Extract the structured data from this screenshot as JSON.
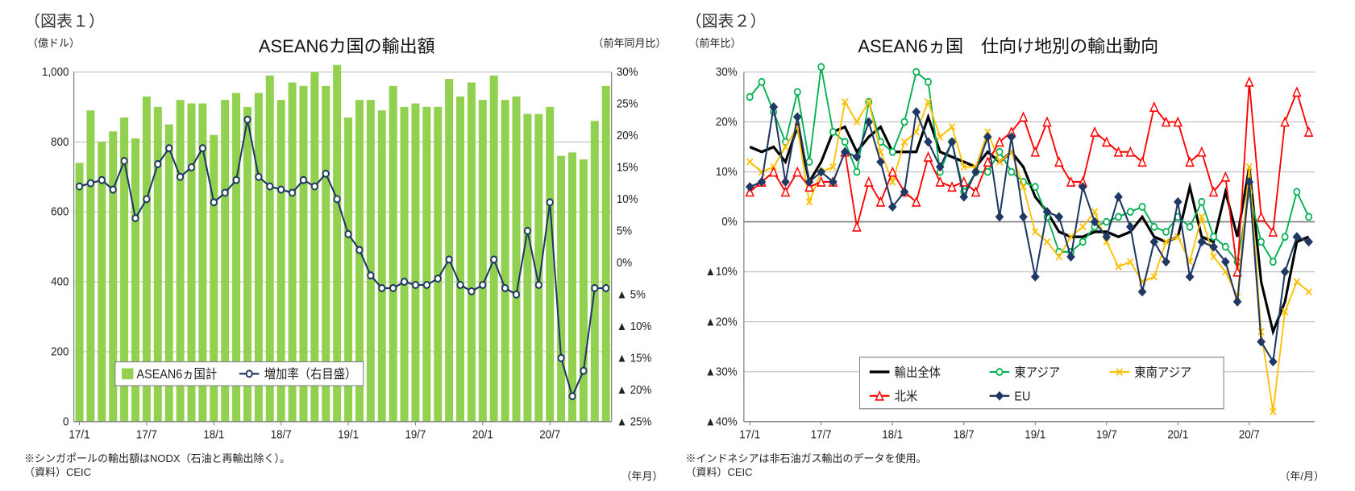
{
  "chart1": {
    "fig_label": "（図表１）",
    "title": "ASEAN6カ国の輸出額",
    "y_left_label": "（億ドル）",
    "y_right_label": "（前年同月比）",
    "x_unit": "（年月）",
    "footnote1": "※シンガポールの輸出額はNODX（石油と再輸出除く）。",
    "footnote2": "（資料）CEIC",
    "type": "bar_and_line",
    "background_color": "#ffffff",
    "grid_color": "#bfbfbf",
    "axis_color": "#7f7f7f",
    "bar_color": "#92d050",
    "line_color": "#1f3864",
    "marker_fill": "#ffffff",
    "marker_stroke": "#1f3864",
    "marker_radius": 3.5,
    "line_width": 2,
    "y_left": {
      "min": 0,
      "max": 1000,
      "step": 200
    },
    "y_right": {
      "min": -25,
      "max": 30,
      "step": 5,
      "labels": [
        "30%",
        "25%",
        "20%",
        "15%",
        "10%",
        "5%",
        "0%",
        "▲ 5%",
        "▲ 10%",
        "▲ 15%",
        "▲ 20%",
        "▲ 25%"
      ]
    },
    "x_labels": [
      "17/1",
      "17/7",
      "18/1",
      "18/7",
      "19/1",
      "19/7",
      "20/1",
      "20/7"
    ],
    "bar_series_name": "ASEAN6ヵ国計",
    "line_series_name": "増加率（右目盛）",
    "bar_values": [
      740,
      890,
      800,
      830,
      870,
      810,
      930,
      900,
      850,
      920,
      910,
      910,
      820,
      920,
      940,
      900,
      940,
      990,
      920,
      970,
      960,
      1000,
      960,
      1020,
      870,
      920,
      920,
      890,
      960,
      900,
      910,
      900,
      900,
      980,
      930,
      970,
      920,
      990,
      920,
      930,
      880,
      880,
      900,
      760,
      770,
      750,
      860,
      960
    ],
    "line_values": [
      12.0,
      12.5,
      13.0,
      11.5,
      16.0,
      7.0,
      10.0,
      15.5,
      18.0,
      13.5,
      15.0,
      18.0,
      9.5,
      11.0,
      13.0,
      22.5,
      13.5,
      12.0,
      11.5,
      11.0,
      13.0,
      12.0,
      14.0,
      10.0,
      4.5,
      2.0,
      -2.0,
      -4.0,
      -4.0,
      -3.0,
      -3.5,
      -3.5,
      -2.5,
      0.5,
      -3.5,
      -4.5,
      -3.5,
      0.5,
      -4.0,
      -5.0,
      5.0,
      -3.5,
      9.5,
      -15.0,
      -21.0,
      -17.0,
      -4.0,
      -4.0
    ]
  },
  "chart2": {
    "fig_label": "（図表２）",
    "title": "ASEAN6ヵ国　仕向け地別の輸出動向",
    "y_left_label": "（前年比）",
    "x_unit": "（年/月）",
    "footnote1": "※インドネシアは非石油ガス輸出のデータを使用。",
    "footnote2": "（資料）CEIC",
    "type": "multi_line",
    "background_color": "#ffffff",
    "grid_color": "#bfbfbf",
    "axis_color": "#7f7f7f",
    "marker_radius": 3.5,
    "line_width": 1.8,
    "y_left": {
      "min": -40,
      "max": 30,
      "step": 10,
      "labels": [
        "30%",
        "20%",
        "10%",
        "0%",
        "▲10%",
        "▲20%",
        "▲30%",
        "▲40%"
      ]
    },
    "x_labels": [
      "17/1",
      "17/7",
      "18/1",
      "18/7",
      "19/1",
      "19/7",
      "20/1",
      "20/7"
    ],
    "series": [
      {
        "name": "輸出全体",
        "color": "#000000",
        "width": 3,
        "marker": "none",
        "values": [
          15,
          14,
          15,
          12,
          19,
          8,
          12,
          18,
          19,
          14,
          17,
          19,
          14,
          14,
          14,
          21,
          14,
          13,
          12,
          11,
          14,
          12,
          14,
          11,
          5,
          2,
          -2,
          -3,
          -3,
          -2,
          -2,
          -3,
          -2,
          1,
          -3,
          -4,
          -3,
          7,
          -3,
          -4,
          6,
          -3,
          11,
          -12,
          -22,
          -16,
          -4,
          -3
        ]
      },
      {
        "name": "東アジア",
        "color": "#00b050",
        "width": 1.8,
        "marker": "open-circle",
        "values": [
          25,
          28,
          22,
          16,
          26,
          12,
          31,
          18,
          16,
          10,
          24,
          16,
          14,
          20,
          30,
          28,
          10,
          16,
          6,
          10,
          10,
          14,
          10,
          8,
          7,
          1,
          -6,
          -6,
          -4,
          -1,
          0,
          1,
          2,
          3,
          -1,
          -2,
          1,
          -1,
          4,
          -3,
          -5,
          -8,
          6,
          -4,
          -8,
          -3,
          6,
          1
        ]
      },
      {
        "name": "東南アジア",
        "color": "#ffc000",
        "width": 1.8,
        "marker": "x",
        "values": [
          12,
          10,
          11,
          15,
          19,
          4,
          10,
          11,
          24,
          20,
          24,
          14,
          8,
          16,
          18,
          24,
          17,
          19,
          11,
          11,
          18,
          12,
          14,
          7,
          -2,
          -4,
          -7,
          -3,
          -1,
          2,
          -4,
          -9,
          -8,
          -12,
          -11,
          -4,
          -3,
          -8,
          1,
          -7,
          -10,
          -15,
          11,
          -22,
          -38,
          -18,
          -12,
          -14
        ]
      },
      {
        "name": "北米",
        "color": "#ff0000",
        "width": 1.8,
        "marker": "open-triangle",
        "values": [
          6,
          8,
          10,
          6,
          10,
          7,
          8,
          8,
          14,
          -1,
          8,
          4,
          10,
          6,
          4,
          13,
          8,
          7,
          8,
          6,
          12,
          16,
          18,
          21,
          14,
          20,
          12,
          8,
          8,
          18,
          16,
          14,
          14,
          12,
          23,
          20,
          20,
          12,
          14,
          6,
          9,
          -10,
          28,
          1,
          -2,
          20,
          26,
          18
        ]
      },
      {
        "name": "EU",
        "color": "#203864",
        "width": 2,
        "marker": "filled-diamond",
        "values": [
          7,
          8,
          23,
          8,
          21,
          8,
          10,
          8,
          14,
          13,
          20,
          12,
          3,
          6,
          22,
          16,
          11,
          16,
          5,
          10,
          17,
          1,
          17,
          1,
          -11,
          2,
          1,
          -7,
          7,
          0,
          -3,
          5,
          -1,
          -14,
          -4,
          -8,
          4,
          -11,
          -4,
          -5,
          -8,
          -16,
          8,
          -24,
          -28,
          -10,
          -3,
          -4
        ]
      }
    ]
  }
}
